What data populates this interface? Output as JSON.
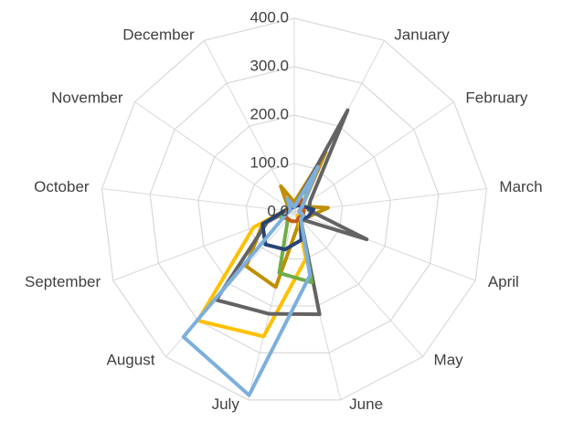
{
  "chart_data": {
    "type": "radar",
    "categories": [
      null,
      "January",
      "February",
      "March",
      "April",
      "May",
      "June",
      "July",
      "August",
      "September",
      "October",
      "November",
      "December"
    ],
    "ylim": [
      0,
      400
    ],
    "yticks": [
      {
        "value": 0,
        "label": "0.0"
      },
      {
        "value": 100,
        "label": "100.0"
      },
      {
        "value": 200,
        "label": "200.0"
      },
      {
        "value": 300,
        "label": "300.0"
      },
      {
        "value": 400,
        "label": "400.0"
      }
    ],
    "grid": true,
    "series": [
      {
        "color": "#bf8f00",
        "values": [
          20,
          140,
          20,
          70,
          30,
          15,
          30,
          160,
          150,
          70,
          20,
          15,
          60
        ]
      },
      {
        "color": "#ffc000",
        "values": [
          10,
          30,
          20,
          15,
          20,
          10,
          100,
          265,
          300,
          90,
          20,
          10,
          15
        ]
      },
      {
        "color": "#636363",
        "values": [
          10,
          237,
          40,
          30,
          160,
          20,
          218,
          217,
          243,
          60,
          15,
          10,
          15
        ]
      },
      {
        "color": "#70ad47",
        "values": [
          10,
          80,
          20,
          10,
          15,
          20,
          150,
          130,
          20,
          30,
          10,
          10,
          10
        ]
      },
      {
        "color": "#264478",
        "values": [
          10,
          15,
          20,
          40,
          30,
          20,
          60,
          80,
          90,
          70,
          20,
          10,
          10
        ]
      },
      {
        "color": "#c55a11",
        "values": [
          10,
          30,
          20,
          20,
          20,
          15,
          20,
          20,
          20,
          20,
          15,
          10,
          20
        ]
      },
      {
        "color": "#7cafdd",
        "values": [
          10,
          105,
          20,
          10,
          20,
          20,
          135,
          390,
          345,
          20,
          10,
          10,
          30
        ]
      }
    ]
  }
}
